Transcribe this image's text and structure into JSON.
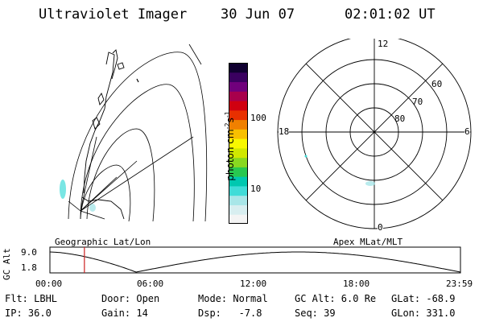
{
  "header": {
    "instrument": "Ultraviolet Imager",
    "date": "30 Jun 07",
    "time": "02:01:02 UT"
  },
  "map_panel": {
    "caption": "Geographic Lat/Lon"
  },
  "colorbar": {
    "label": "photon cm",
    "label_sup1": "-2",
    "label_mid": "s",
    "label_sup2": "-1",
    "ticks": [
      "100",
      "10"
    ],
    "colors": [
      "#f4f4f4",
      "#d8eef0",
      "#a8e6e8",
      "#40dcd8",
      "#00c8b0",
      "#28c850",
      "#88d820",
      "#d0e800",
      "#f8f800",
      "#f8c000",
      "#f08000",
      "#e83000",
      "#d00010",
      "#a8004c",
      "#70007c",
      "#3a0060",
      "#100030"
    ]
  },
  "polar_panel": {
    "caption": "Apex MLat/MLT",
    "mlt_labels": {
      "top": "12",
      "bottom": "0",
      "left": "18",
      "right": "6"
    },
    "lat_labels": [
      "60",
      "70",
      "80"
    ]
  },
  "timeline": {
    "y_label": "GC Alt",
    "y_ticks": [
      "9.0",
      "1.8"
    ],
    "x_ticks": [
      "00:00",
      "06:00",
      "12:00",
      "18:00",
      "23:59"
    ],
    "marker_color": "#cc2020"
  },
  "footer": {
    "filter": "Flt: LBHL",
    "ip": "IP: 36.0",
    "door": "Door: Open",
    "gain": "Gain: 14",
    "mode": "Mode: Normal",
    "dsp": "Dsp:   -7.8",
    "gc_alt": "GC Alt: 6.0 Re",
    "seq": "Seq: 39",
    "glat": "GLat: -68.9",
    "glon": "GLon: 331.0"
  }
}
